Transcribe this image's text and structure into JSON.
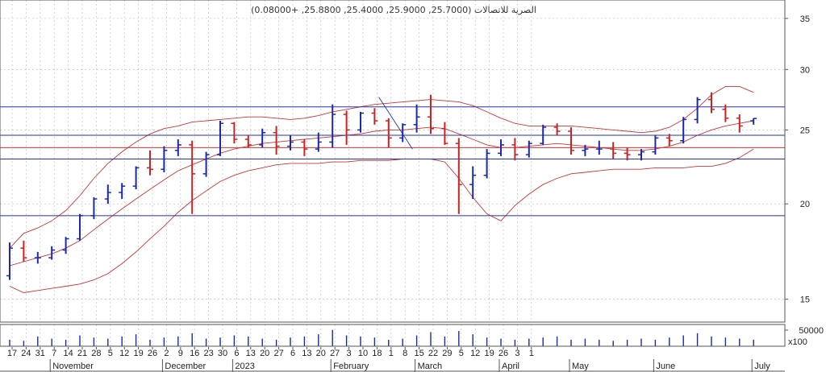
{
  "chart_data": {
    "type": "bar",
    "subtype": "ohlc-price-chart-with-volume",
    "title": "الصرية للاتصالات (25.7000, 25.9000, 25.4000, 25.8800, +0.08000)",
    "last_bar": {
      "open": 25.7,
      "high": 25.9,
      "low": 25.4,
      "close": 25.88,
      "change": 0.08
    },
    "y_scale": "log",
    "ylim": [
      14,
      37
    ],
    "y_ticks": [
      15,
      20,
      25,
      30,
      35
    ],
    "volume_tick": "50000",
    "volume_multiplier": "x100",
    "volume_ylim": [
      0,
      100000
    ],
    "x_day_labels": [
      "17",
      "24",
      "31",
      "7",
      "14",
      "21",
      "28",
      "5",
      "12",
      "19",
      "26",
      "2",
      "9",
      "16",
      "23",
      "30",
      "6",
      "13",
      "20",
      "27",
      "6",
      "13",
      "20",
      "27",
      "3",
      "10",
      "18",
      "1",
      "8",
      "15",
      "22",
      "29",
      "5",
      "12",
      "19",
      "26",
      "3",
      "1"
    ],
    "x_month_labels": [
      "November",
      "December",
      "2023",
      "February",
      "March",
      "April",
      "May",
      "June",
      "July"
    ],
    "horizontal_levels": [
      {
        "value": 26.8,
        "color": "#2233aa"
      },
      {
        "value": 24.6,
        "color": "#2233aa"
      },
      {
        "value": 23.7,
        "color": "#cc3333"
      },
      {
        "value": 22.9,
        "color": "#2233aa"
      },
      {
        "value": 19.3,
        "color": "#2233aa"
      }
    ],
    "trendline": {
      "from": [
        26.3,
        27.6
      ],
      "to": [
        28.7,
        23.6
      ],
      "units": "[week_index, price]"
    },
    "colors": {
      "up": "#1a2aa8",
      "down": "#cc2222",
      "bands": "#cc3333",
      "levels": "#2233aa",
      "grid": "#b8b8b8"
    },
    "grid": true,
    "bollinger_bands": {
      "upper": true,
      "middle": true,
      "lower": true
    },
    "series": [
      {
        "values": [
          [
            16.1,
            17.8,
            15.9,
            17.5
          ],
          [
            17.5,
            17.9,
            16.8,
            17.0
          ],
          [
            17.0,
            17.3,
            16.7,
            17.0
          ],
          [
            17.0,
            17.6,
            16.9,
            17.4
          ],
          [
            17.4,
            18.1,
            17.2,
            18.0
          ],
          [
            18.0,
            19.4,
            17.9,
            19.3
          ],
          [
            19.3,
            20.4,
            19.1,
            20.3
          ],
          [
            20.3,
            21.2,
            20.0,
            20.7
          ],
          [
            20.7,
            21.3,
            20.3,
            21.1
          ],
          [
            21.1,
            22.4,
            20.9,
            22.3
          ],
          [
            22.3,
            23.5,
            21.8,
            22.2
          ],
          [
            22.2,
            23.8,
            22.0,
            23.5
          ],
          [
            23.5,
            24.3,
            23.1,
            23.9
          ],
          [
            23.9,
            24.2,
            19.4,
            21.9
          ],
          [
            21.9,
            23.4,
            21.7,
            23.2
          ],
          [
            23.2,
            25.7,
            23.1,
            25.5
          ],
          [
            25.5,
            25.6,
            24.0,
            24.3
          ],
          [
            24.3,
            24.6,
            23.7,
            23.9
          ],
          [
            23.9,
            25.1,
            23.7,
            24.8
          ],
          [
            24.8,
            25.3,
            23.2,
            23.8
          ],
          [
            23.8,
            24.6,
            23.5,
            24.1
          ],
          [
            24.1,
            24.3,
            23.1,
            23.6
          ],
          [
            23.6,
            24.8,
            23.4,
            24.1
          ],
          [
            24.1,
            27.0,
            23.7,
            26.2
          ],
          [
            26.2,
            26.5,
            23.9,
            25.0
          ],
          [
            25.0,
            26.4,
            24.8,
            26.3
          ],
          [
            26.3,
            26.7,
            25.4,
            25.7
          ],
          [
            25.7,
            25.9,
            23.7,
            24.4
          ],
          [
            24.4,
            25.5,
            24.1,
            25.4
          ],
          [
            25.4,
            27.0,
            24.8,
            26.0
          ],
          [
            26.0,
            27.8,
            24.7,
            25.1
          ],
          [
            25.1,
            25.6,
            23.9,
            24.0
          ],
          [
            24.0,
            24.4,
            19.4,
            21.2
          ],
          [
            21.2,
            22.4,
            20.3,
            21.8
          ],
          [
            21.8,
            23.6,
            21.6,
            23.3
          ],
          [
            23.3,
            24.3,
            23.1,
            23.9
          ],
          [
            23.9,
            24.4,
            22.8,
            23.2
          ],
          [
            23.2,
            24.2,
            23.0,
            24.0
          ],
          [
            24.0,
            25.4,
            23.9,
            25.2
          ],
          [
            25.2,
            25.5,
            24.6,
            24.9
          ],
          [
            24.9,
            25.2,
            23.2,
            23.5
          ],
          [
            23.5,
            23.9,
            23.1,
            23.6
          ],
          [
            23.6,
            24.2,
            23.2,
            23.6
          ],
          [
            23.6,
            24.1,
            22.9,
            23.3
          ],
          [
            23.3,
            23.7,
            22.8,
            23.2
          ],
          [
            23.2,
            23.6,
            22.8,
            23.4
          ],
          [
            23.4,
            24.6,
            23.2,
            24.4
          ],
          [
            24.4,
            24.7,
            23.8,
            24.2
          ],
          [
            24.2,
            26.0,
            24.0,
            25.8
          ],
          [
            25.8,
            27.6,
            25.5,
            27.4
          ],
          [
            27.4,
            28.0,
            26.3,
            26.6
          ],
          [
            26.6,
            27.0,
            25.6,
            25.9
          ],
          [
            25.9,
            26.2,
            24.8,
            25.3
          ],
          [
            25.7,
            25.9,
            25.4,
            25.88
          ]
        ]
      }
    ],
    "upper_band": [
      17.5,
      18.3,
      18.6,
      19.0,
      19.6,
      20.5,
      21.6,
      22.6,
      23.4,
      24.1,
      24.7,
      25.1,
      25.3,
      25.6,
      25.7,
      25.8,
      25.9,
      26.0,
      26.0,
      25.9,
      25.8,
      25.9,
      26.1,
      26.4,
      26.6,
      26.8,
      27.0,
      27.1,
      27.2,
      27.3,
      27.4,
      27.3,
      27.2,
      26.9,
      26.4,
      25.9,
      25.5,
      25.3,
      25.3,
      25.3,
      25.3,
      25.2,
      25.1,
      25.0,
      24.9,
      24.8,
      24.9,
      25.2,
      25.8,
      26.7,
      27.8,
      28.5,
      28.5,
      28.0
    ],
    "middle_band": [
      16.6,
      16.8,
      17.0,
      17.2,
      17.5,
      17.9,
      18.5,
      19.1,
      19.7,
      20.3,
      20.9,
      21.5,
      22.1,
      22.5,
      22.9,
      23.3,
      23.6,
      23.8,
      24.0,
      24.1,
      24.2,
      24.3,
      24.4,
      24.5,
      24.6,
      24.7,
      24.9,
      25.0,
      25.0,
      25.1,
      25.2,
      25.1,
      24.7,
      24.3,
      23.9,
      23.7,
      23.7,
      23.8,
      23.9,
      24.0,
      23.9,
      23.8,
      23.7,
      23.6,
      23.5,
      23.5,
      23.6,
      23.8,
      24.1,
      24.6,
      25.0,
      25.3,
      25.5,
      25.7
    ],
    "lower_band": [
      15.6,
      15.3,
      15.4,
      15.5,
      15.6,
      15.7,
      15.9,
      16.2,
      16.7,
      17.3,
      18.0,
      18.7,
      19.5,
      20.2,
      20.8,
      21.4,
      21.8,
      22.1,
      22.3,
      22.5,
      22.6,
      22.6,
      22.6,
      22.7,
      22.7,
      22.8,
      22.8,
      22.8,
      22.9,
      22.9,
      22.9,
      22.7,
      21.6,
      20.4,
      19.4,
      19.0,
      19.9,
      20.6,
      21.2,
      21.6,
      21.9,
      22.0,
      22.1,
      22.2,
      22.2,
      22.2,
      22.3,
      22.3,
      22.3,
      22.4,
      22.4,
      22.6,
      23.0,
      23.6
    ],
    "volume": [
      30,
      25,
      45,
      35,
      30,
      50,
      40,
      35,
      45,
      55,
      30,
      40,
      45,
      60,
      35,
      40,
      50,
      45,
      35,
      30,
      40,
      45,
      55,
      75,
      50,
      45,
      40,
      30,
      35,
      50,
      65,
      45,
      70,
      55,
      40,
      35,
      30,
      35,
      40,
      45,
      30,
      35,
      30,
      25,
      30,
      35,
      30,
      40,
      50,
      60,
      45,
      40,
      35,
      30
    ]
  }
}
